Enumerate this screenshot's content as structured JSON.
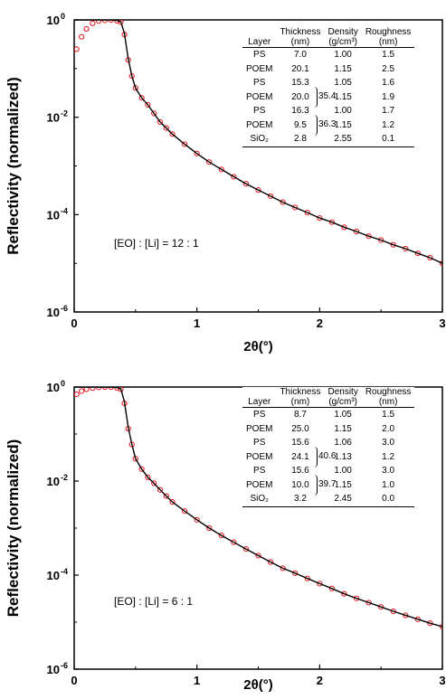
{
  "chart_data": [
    {
      "type": "scatter",
      "title": "",
      "xlabel": "2θ(°)",
      "ylabel": "Reflectivity (normalized)",
      "x_ticks": [
        "0",
        "1",
        "2",
        "3"
      ],
      "y_ticks": [
        {
          "base": "10",
          "exp": "0"
        },
        {
          "base": "10",
          "exp": "-2"
        },
        {
          "base": "10",
          "exp": "-4"
        },
        {
          "base": "10",
          "exp": "-6"
        }
      ],
      "xlim": [
        0,
        3
      ],
      "ylim": [
        1e-06,
        1
      ],
      "y_scale": "log",
      "colors": {
        "measured": "#e8121c",
        "fit": "#000000"
      },
      "series": [
        {
          "marker": "open-circle",
          "x": [
            0.02,
            0.06,
            0.1,
            0.15,
            0.2,
            0.25,
            0.3,
            0.35,
            0.38,
            0.41,
            0.44,
            0.47,
            0.5,
            0.55,
            0.6,
            0.65,
            0.7,
            0.75,
            0.8,
            0.9,
            1.0,
            1.1,
            1.2,
            1.3,
            1.4,
            1.5,
            1.6,
            1.7,
            1.8,
            1.9,
            2.0,
            2.1,
            2.2,
            2.3,
            2.4,
            2.5,
            2.6,
            2.7,
            2.8,
            2.9,
            3.0
          ],
          "y": [
            0.25,
            0.45,
            0.65,
            0.85,
            0.95,
            0.98,
            1.0,
            0.95,
            0.9,
            0.5,
            0.15,
            0.07,
            0.04,
            0.025,
            0.018,
            0.012,
            0.008,
            0.006,
            0.0045,
            0.0028,
            0.0018,
            0.0012,
            0.00085,
            0.0006,
            0.00043,
            0.00032,
            0.00024,
            0.00018,
            0.00014,
            0.00011,
            8.5e-05,
            7e-05,
            5.5e-05,
            4.5e-05,
            3.6e-05,
            3e-05,
            2.4e-05,
            2e-05,
            1.6e-05,
            1.3e-05,
            1e-05
          ]
        },
        {
          "marker": "line",
          "x": [
            0.0,
            0.05,
            0.1,
            0.2,
            0.3,
            0.35,
            0.38,
            0.41,
            0.44,
            0.47,
            0.5,
            0.55,
            0.6,
            0.65,
            0.7,
            0.75,
            0.8,
            0.9,
            1.0,
            1.1,
            1.2,
            1.3,
            1.4,
            1.5,
            1.6,
            1.7,
            1.8,
            1.9,
            2.0,
            2.1,
            2.2,
            2.3,
            2.4,
            2.5,
            2.6,
            2.7,
            2.8,
            2.9,
            3.0
          ],
          "y": [
            1.0,
            1.0,
            1.0,
            1.0,
            1.0,
            0.97,
            0.92,
            0.52,
            0.16,
            0.07,
            0.04,
            0.025,
            0.018,
            0.012,
            0.008,
            0.006,
            0.0045,
            0.0028,
            0.0018,
            0.0012,
            0.00085,
            0.0006,
            0.00043,
            0.00032,
            0.00024,
            0.00018,
            0.00014,
            0.00011,
            8.5e-05,
            7e-05,
            5.5e-05,
            4.5e-05,
            3.6e-05,
            3e-05,
            2.4e-05,
            2e-05,
            1.6e-05,
            1.3e-05,
            1e-05
          ]
        }
      ],
      "annotation": "[EO] : [Li] = 12 : 1",
      "table": {
        "headers": [
          {
            "line1": "Layer",
            "line2": ""
          },
          {
            "line1": "Thickness",
            "line2": "(nm)"
          },
          {
            "line1": "Density",
            "line2": "(g/cm³)"
          },
          {
            "line1": "Roughness",
            "line2": "(nm)"
          }
        ],
        "rows": [
          {
            "layer": "PS",
            "thickness": "7.0",
            "density": "1.00",
            "roughness": "1.5"
          },
          {
            "layer": "POEM",
            "thickness": "20.1",
            "density": "1.15",
            "roughness": "2.5"
          },
          {
            "layer": "PS",
            "thickness": "15.3",
            "density": "1.05",
            "roughness": "1.6"
          },
          {
            "layer": "POEM",
            "thickness": "20.0",
            "density": "1.15",
            "roughness": "1.9"
          },
          {
            "layer": "PS",
            "thickness": "16.3",
            "density": "1.00",
            "roughness": "1.7"
          },
          {
            "layer": "POEM",
            "thickness": "9.5",
            "density": "1.15",
            "roughness": "1.2"
          },
          {
            "layer": "SiO₂",
            "thickness": "2.8",
            "density": "2.55",
            "roughness": "0.1"
          }
        ],
        "bracket_totals": [
          "35.4",
          "36.3"
        ]
      }
    },
    {
      "type": "scatter",
      "title": "",
      "xlabel": "2θ(°)",
      "ylabel": "Reflectivity (normalized)",
      "x_ticks": [
        "0",
        "1",
        "2",
        "3"
      ],
      "y_ticks": [
        {
          "base": "10",
          "exp": "0"
        },
        {
          "base": "10",
          "exp": "-2"
        },
        {
          "base": "10",
          "exp": "-4"
        },
        {
          "base": "10",
          "exp": "-6"
        }
      ],
      "xlim": [
        0,
        3
      ],
      "ylim": [
        1e-06,
        1
      ],
      "y_scale": "log",
      "colors": {
        "measured": "#e8121c",
        "fit": "#000000"
      },
      "series": [
        {
          "marker": "open-circle",
          "x": [
            0.02,
            0.06,
            0.1,
            0.15,
            0.2,
            0.25,
            0.3,
            0.35,
            0.38,
            0.41,
            0.44,
            0.47,
            0.5,
            0.55,
            0.6,
            0.65,
            0.7,
            0.75,
            0.8,
            0.9,
            1.0,
            1.1,
            1.2,
            1.3,
            1.4,
            1.5,
            1.6,
            1.7,
            1.8,
            1.9,
            2.0,
            2.1,
            2.2,
            2.3,
            2.4,
            2.5,
            2.6,
            2.7,
            2.8,
            2.9,
            3.0
          ],
          "y": [
            0.7,
            0.82,
            0.9,
            0.95,
            0.98,
            1.0,
            1.0,
            0.95,
            0.9,
            0.45,
            0.13,
            0.06,
            0.03,
            0.018,
            0.012,
            0.009,
            0.0065,
            0.0048,
            0.0036,
            0.0023,
            0.0015,
            0.001,
            0.0007,
            0.0005,
            0.00036,
            0.00026,
            0.00019,
            0.00014,
            0.00011,
            8.5e-05,
            6.6e-05,
            5.2e-05,
            4e-05,
            3.2e-05,
            2.6e-05,
            2.1e-05,
            1.7e-05,
            1.4e-05,
            1.15e-05,
            9.5e-06,
            8e-06
          ]
        },
        {
          "marker": "line",
          "x": [
            0.0,
            0.05,
            0.1,
            0.2,
            0.3,
            0.35,
            0.38,
            0.41,
            0.44,
            0.47,
            0.5,
            0.55,
            0.6,
            0.65,
            0.7,
            0.75,
            0.8,
            0.9,
            1.0,
            1.1,
            1.2,
            1.3,
            1.4,
            1.5,
            1.6,
            1.7,
            1.8,
            1.9,
            2.0,
            2.1,
            2.2,
            2.3,
            2.4,
            2.5,
            2.6,
            2.7,
            2.8,
            2.9,
            3.0
          ],
          "y": [
            1.0,
            1.0,
            1.0,
            1.0,
            1.0,
            0.97,
            0.92,
            0.48,
            0.14,
            0.06,
            0.03,
            0.018,
            0.012,
            0.009,
            0.0065,
            0.0048,
            0.0036,
            0.0023,
            0.0015,
            0.001,
            0.0007,
            0.0005,
            0.00036,
            0.00026,
            0.00019,
            0.00014,
            0.00011,
            8.5e-05,
            6.6e-05,
            5.2e-05,
            4e-05,
            3.2e-05,
            2.6e-05,
            2.1e-05,
            1.7e-05,
            1.4e-05,
            1.15e-05,
            9.5e-06,
            8e-06
          ]
        }
      ],
      "annotation": "[EO] : [Li] = 6 : 1",
      "table": {
        "headers": [
          {
            "line1": "Layer",
            "line2": ""
          },
          {
            "line1": "Thickness",
            "line2": "(nm)"
          },
          {
            "line1": "Density",
            "line2": "(g/cm³)"
          },
          {
            "line1": "Roughness",
            "line2": "(nm)"
          }
        ],
        "rows": [
          {
            "layer": "PS",
            "thickness": "8.7",
            "density": "1.05",
            "roughness": "1.5"
          },
          {
            "layer": "POEM",
            "thickness": "25.0",
            "density": "1.15",
            "roughness": "2.0"
          },
          {
            "layer": "PS",
            "thickness": "15.6",
            "density": "1.06",
            "roughness": "3.0"
          },
          {
            "layer": "POEM",
            "thickness": "24.1",
            "density": "1.13",
            "roughness": "1.2"
          },
          {
            "layer": "PS",
            "thickness": "15.6",
            "density": "1.00",
            "roughness": "3.0"
          },
          {
            "layer": "POEM",
            "thickness": "10.0",
            "density": "1.15",
            "roughness": "1.0"
          },
          {
            "layer": "SiO₂",
            "thickness": "3.2",
            "density": "2.45",
            "roughness": "0.0"
          }
        ],
        "bracket_totals": [
          "40.6",
          "39.7"
        ]
      }
    }
  ]
}
